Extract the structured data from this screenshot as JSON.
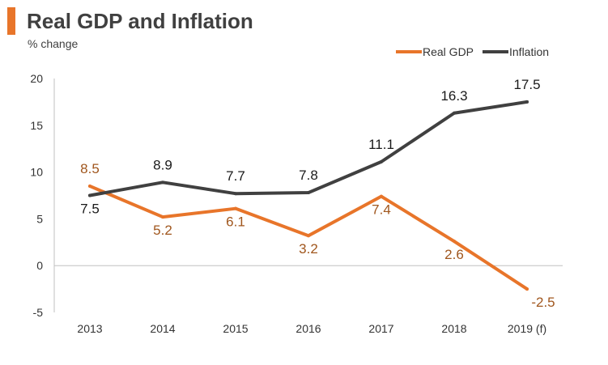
{
  "header": {
    "title": "Real GDP and Inflation",
    "subtitle": "% change"
  },
  "colors": {
    "accent": "#e8752a",
    "gdp_line": "#e8752a",
    "gdp_label": "#a0561d",
    "inflation_line": "#404040",
    "inflation_label": "#1a1a1a",
    "axis": "#c0c0c0",
    "text": "#333333"
  },
  "chart_data": {
    "type": "line",
    "title": "Real GDP and Inflation",
    "subtitle": "% change",
    "xlabel": "",
    "ylabel": "% change",
    "categories": [
      "2013",
      "2014",
      "2015",
      "2016",
      "2017",
      "2018",
      "2019 (f)"
    ],
    "ylim": [
      -5,
      20
    ],
    "yticks": [
      20,
      15,
      10,
      5,
      0,
      -5
    ],
    "grid": false,
    "legend": "top-right",
    "series": [
      {
        "name": "Real GDP",
        "values": [
          8.5,
          5.2,
          6.1,
          3.2,
          7.4,
          2.6,
          -2.5
        ],
        "labels": [
          "8.5",
          "5.2",
          "6.1",
          "3.2",
          "7.4",
          "2.6",
          "-2.5"
        ]
      },
      {
        "name": "Inflation",
        "values": [
          7.5,
          8.9,
          7.7,
          7.8,
          11.1,
          16.3,
          17.5
        ],
        "labels": [
          "7.5",
          "8.9",
          "7.7",
          "7.8",
          "11.1",
          "16.3",
          "17.5"
        ]
      }
    ]
  }
}
